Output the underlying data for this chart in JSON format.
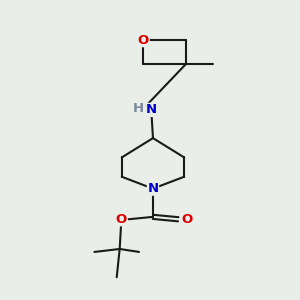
{
  "bg_color": "#eaeee9",
  "bond_color": "#1a1a1a",
  "oxygen_color": "#dd0000",
  "nitrogen_color": "#0000cc",
  "hydrogen_color": "#778899",
  "line_width": 1.5,
  "font_size": 9.5,
  "fig_size": [
    3.0,
    3.0
  ],
  "dpi": 100,
  "xlim": [
    0,
    10
  ],
  "ylim": [
    0,
    10
  ]
}
